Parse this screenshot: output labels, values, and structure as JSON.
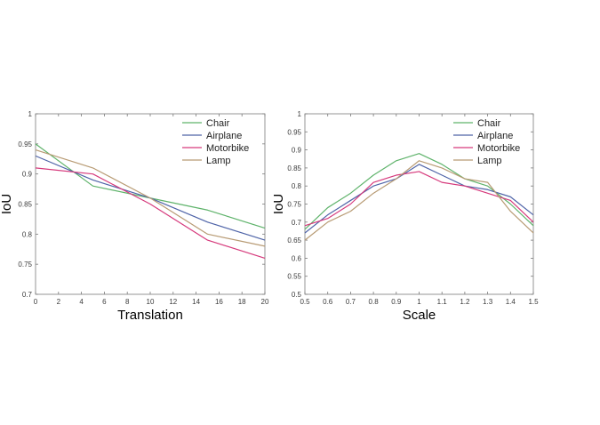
{
  "chart_data": [
    {
      "type": "line",
      "xlabel": "Translation",
      "ylabel": "IoU",
      "xlim": [
        0,
        20
      ],
      "ylim": [
        0.7,
        1
      ],
      "xticks": [
        0,
        2,
        4,
        6,
        8,
        10,
        12,
        14,
        16,
        18,
        20
      ],
      "yticks": [
        0.7,
        0.75,
        0.8,
        0.85,
        0.9,
        0.95,
        1
      ],
      "xtick_labels": [
        "0",
        "2",
        "4",
        "6",
        "8",
        "10",
        "12",
        "14",
        "16",
        "18",
        "20"
      ],
      "ytick_labels": [
        "0.7",
        "0.75",
        "0.8",
        "0.85",
        "0.9",
        "0.95",
        "1"
      ],
      "grid": false,
      "legend_position": "top-right",
      "x": [
        0,
        5,
        10,
        15,
        20
      ],
      "series": [
        {
          "name": "Chair",
          "color": "#5fb36b",
          "values": [
            0.95,
            0.88,
            0.86,
            0.84,
            0.81
          ]
        },
        {
          "name": "Airplane",
          "color": "#4f64a8",
          "values": [
            0.93,
            0.89,
            0.86,
            0.82,
            0.79
          ]
        },
        {
          "name": "Motorbike",
          "color": "#d63a7c",
          "values": [
            0.91,
            0.9,
            0.85,
            0.79,
            0.76
          ]
        },
        {
          "name": "Lamp",
          "color": "#b89b74",
          "values": [
            0.94,
            0.91,
            0.86,
            0.8,
            0.78
          ]
        }
      ]
    },
    {
      "type": "line",
      "xlabel": "Scale",
      "ylabel": "IoU",
      "xlim": [
        0.5,
        1.5
      ],
      "ylim": [
        0.5,
        1
      ],
      "xticks": [
        0.5,
        0.6,
        0.7,
        0.8,
        0.9,
        1,
        1.1,
        1.2,
        1.3,
        1.4,
        1.5
      ],
      "yticks": [
        0.5,
        0.55,
        0.6,
        0.65,
        0.7,
        0.75,
        0.8,
        0.85,
        0.9,
        0.95,
        1
      ],
      "xtick_labels": [
        "0.5",
        "0.6",
        "0.7",
        "0.8",
        "0.9",
        "1",
        "1.1",
        "1.2",
        "1.3",
        "1.4",
        "1.5"
      ],
      "ytick_labels": [
        "0.5",
        "0.55",
        "0.6",
        "0.65",
        "0.7",
        "0.75",
        "0.8",
        "0.85",
        "0.9",
        "0.95",
        "1"
      ],
      "grid": false,
      "legend_position": "top-right",
      "x": [
        0.5,
        0.6,
        0.7,
        0.8,
        0.9,
        1.0,
        1.1,
        1.2,
        1.3,
        1.4,
        1.5
      ],
      "series": [
        {
          "name": "Chair",
          "color": "#5fb36b",
          "values": [
            0.68,
            0.74,
            0.78,
            0.83,
            0.87,
            0.89,
            0.86,
            0.82,
            0.8,
            0.75,
            0.69
          ]
        },
        {
          "name": "Airplane",
          "color": "#4f64a8",
          "values": [
            0.67,
            0.72,
            0.76,
            0.8,
            0.82,
            0.86,
            0.83,
            0.8,
            0.79,
            0.77,
            0.72
          ]
        },
        {
          "name": "Motorbike",
          "color": "#d63a7c",
          "values": [
            0.69,
            0.71,
            0.75,
            0.81,
            0.83,
            0.84,
            0.81,
            0.8,
            0.78,
            0.76,
            0.7
          ]
        },
        {
          "name": "Lamp",
          "color": "#b89b74",
          "values": [
            0.65,
            0.7,
            0.73,
            0.78,
            0.82,
            0.87,
            0.85,
            0.82,
            0.81,
            0.73,
            0.67
          ]
        }
      ]
    }
  ]
}
